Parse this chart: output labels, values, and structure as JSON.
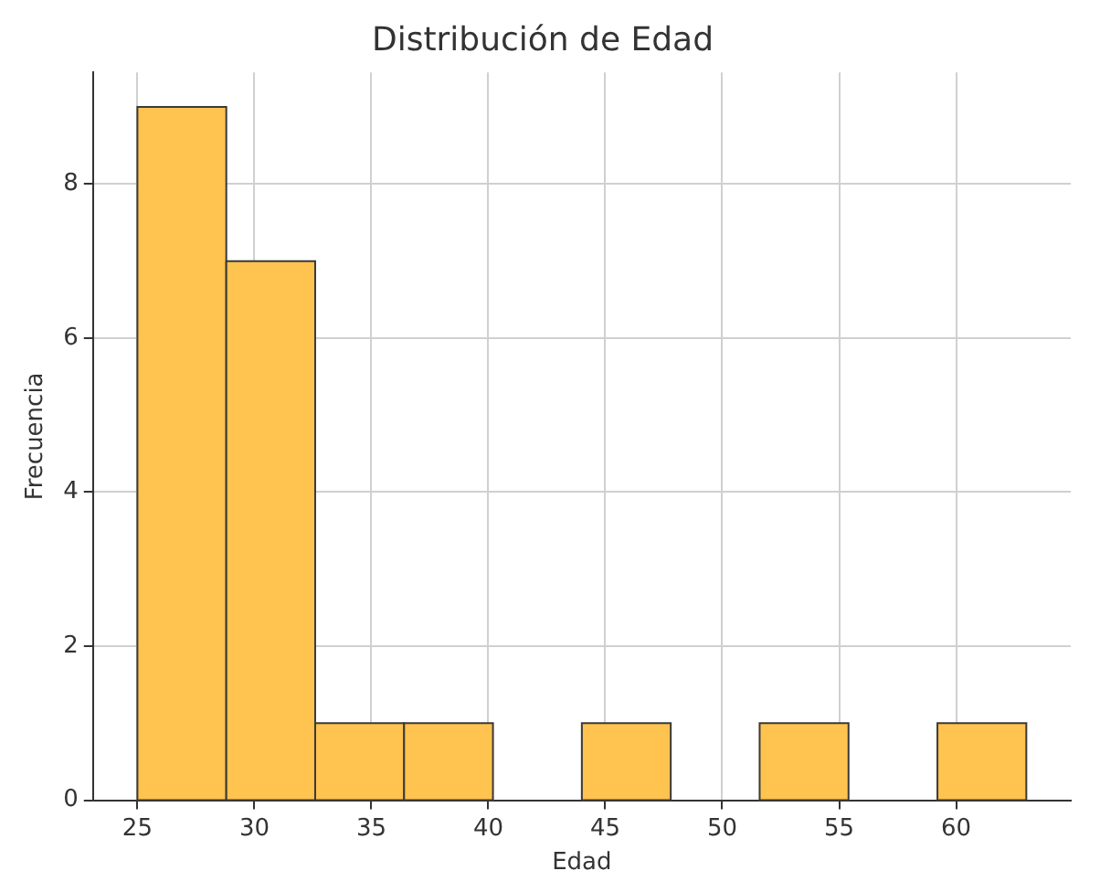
{
  "chart_data": {
    "type": "histogram",
    "title": "Distribución de Edad",
    "xlabel": "Edad",
    "ylabel": "Frecuencia",
    "bins": [
      25,
      28.8,
      32.6,
      36.4,
      40.2,
      44,
      47.8,
      51.6,
      55.4,
      59.2,
      63
    ],
    "values": [
      9,
      7,
      1,
      1,
      0,
      1,
      0,
      1,
      0,
      1
    ],
    "color": "#ffc34f",
    "xlim": [
      23.1,
      64.9
    ],
    "xticks": [
      25,
      30,
      35,
      40,
      45,
      50,
      55,
      60
    ],
    "ylim": [
      0,
      9.45
    ],
    "yticks": [
      0,
      2,
      4,
      6,
      8
    ],
    "grid": true,
    "legend": false
  }
}
